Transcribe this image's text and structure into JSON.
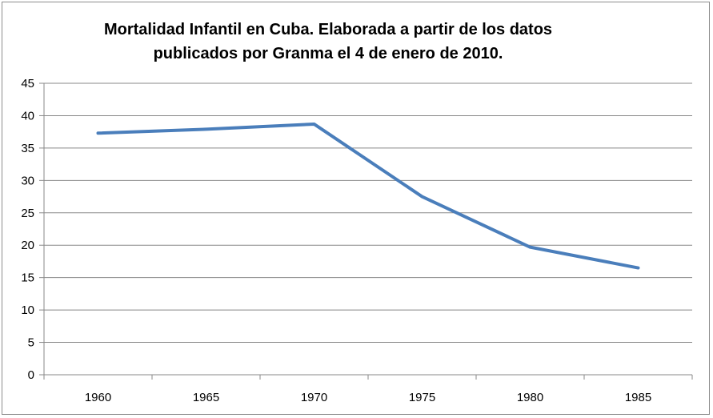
{
  "chart_data": {
    "type": "line",
    "title_lines": [
      "Mortalidad Infantil en Cuba. Elaborada  a partir de los datos",
      "publicados  por Granma el 4 de enero de 2010."
    ],
    "x": [
      "1960",
      "1965",
      "1970",
      "1975",
      "1980",
      "1985"
    ],
    "series": [
      {
        "values": [
          37.3,
          37.9,
          38.7,
          27.5,
          19.7,
          16.5
        ]
      }
    ],
    "ylim": [
      0,
      45
    ],
    "yticks": [
      "0",
      "5",
      "10",
      "15",
      "20",
      "25",
      "30",
      "35",
      "40",
      "45"
    ],
    "grid": true,
    "line_color": "#4a7ebb",
    "grid_color": "#888888"
  }
}
